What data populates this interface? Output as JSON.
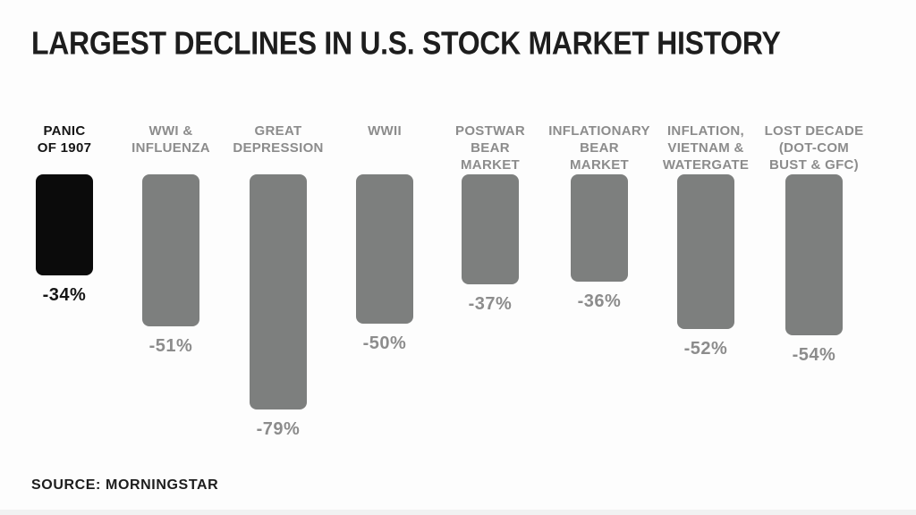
{
  "title": "LARGEST DECLINES IN U.S. STOCK MARKET HISTORY",
  "source": "SOURCE: MORNINGSTAR",
  "colors": {
    "background": "#fdfdfd",
    "highlight_bar": "#0b0b0b",
    "bar_gray": "#7d7f7e",
    "label_gray": "#8c8c8c",
    "text_black": "#1d1d1d"
  },
  "chart_data": {
    "type": "bar",
    "title": "LARGEST DECLINES IN U.S. STOCK MARKET HISTORY",
    "orientation": "vertical-descending-from-common-top",
    "categories": [
      "PANIC\nOF 1907",
      "WWI &\nINFLUENZA",
      "GREAT\nDEPRESSION",
      "WWII",
      "POSTWAR\nBEAR\nMARKET",
      "INFLATIONARY\nBEAR\nMARKET",
      "INFLATION,\nVIETNAM &\nWATERGATE",
      "LOST DECADE\n(DOT-COM\nBUST & GFC)"
    ],
    "values": [
      -34,
      -51,
      -79,
      -50,
      -37,
      -36,
      -52,
      -54
    ],
    "value_labels": [
      "-34%",
      "-51%",
      "-79%",
      "-50%",
      "-37%",
      "-36%",
      "-52%",
      "-54%"
    ],
    "highlighted_index": 0,
    "xlabel": "",
    "ylabel": "",
    "ylim": [
      -80,
      0
    ],
    "grid": false,
    "legend": false,
    "source": "SOURCE: MORNINGSTAR"
  }
}
